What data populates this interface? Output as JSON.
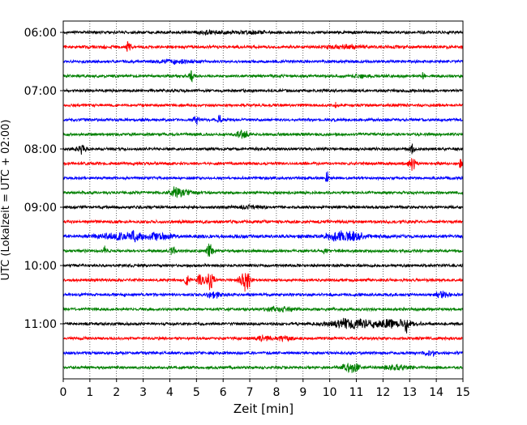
{
  "chart_data": {
    "type": "line",
    "title": "",
    "xlabel": "Zeit  [min]",
    "ylabel": "UTC (Lokalzeit = UTC + 02:00)",
    "xlim": [
      0,
      15
    ],
    "x_ticks": [
      "0",
      "1",
      "2",
      "3",
      "4",
      "5",
      "6",
      "7",
      "8",
      "9",
      "10",
      "11",
      "12",
      "13",
      "14",
      "15"
    ],
    "y_ticks": [
      "06:00",
      "07:00",
      "08:00",
      "09:00",
      "10:00",
      "11:00"
    ],
    "grid": "vertical dotted",
    "trace_interval_minutes": 15,
    "colors": [
      "#000000",
      "#ff0000",
      "#0000ff",
      "#008000"
    ],
    "traces": [
      {
        "start": "06:00",
        "color": "#000000",
        "noise": 2.0,
        "events": [
          [
            5.5,
            2,
            0.5
          ],
          [
            7.0,
            1.6,
            0.6
          ]
        ]
      },
      {
        "start": "06:15",
        "color": "#ff0000",
        "noise": 2.2,
        "events": [
          [
            2.45,
            9,
            0.08
          ],
          [
            10.6,
            2.5,
            0.5
          ]
        ]
      },
      {
        "start": "06:30",
        "color": "#0000ff",
        "noise": 2.0,
        "events": [
          [
            4.2,
            2.5,
            0.6
          ]
        ]
      },
      {
        "start": "06:45",
        "color": "#008000",
        "noise": 2.0,
        "events": [
          [
            4.8,
            8,
            0.08
          ],
          [
            11.2,
            2,
            0.4
          ],
          [
            13.5,
            5,
            0.06
          ]
        ]
      },
      {
        "start": "07:00",
        "color": "#000000",
        "noise": 2.0,
        "events": []
      },
      {
        "start": "07:15",
        "color": "#ff0000",
        "noise": 2.0,
        "events": [
          [
            10.2,
            4,
            0.1
          ]
        ]
      },
      {
        "start": "07:30",
        "color": "#0000ff",
        "noise": 2.0,
        "events": [
          [
            5.0,
            5,
            0.12
          ],
          [
            5.85,
            7,
            0.08
          ]
        ]
      },
      {
        "start": "07:45",
        "color": "#008000",
        "noise": 2.0,
        "events": [
          [
            6.7,
            6,
            0.2
          ]
        ]
      },
      {
        "start": "08:00",
        "color": "#000000",
        "noise": 2.0,
        "events": [
          [
            0.65,
            6,
            0.2
          ],
          [
            13.1,
            7,
            0.1
          ]
        ]
      },
      {
        "start": "08:15",
        "color": "#ff0000",
        "noise": 2.0,
        "events": [
          [
            13.1,
            10,
            0.12
          ],
          [
            14.9,
            6,
            0.06
          ]
        ]
      },
      {
        "start": "08:30",
        "color": "#0000ff",
        "noise": 2.0,
        "events": [
          [
            9.9,
            9,
            0.06
          ]
        ]
      },
      {
        "start": "08:45",
        "color": "#008000",
        "noise": 2.0,
        "events": [
          [
            4.2,
            7,
            0.2
          ],
          [
            4.6,
            3,
            0.3
          ]
        ]
      },
      {
        "start": "09:00",
        "color": "#000000",
        "noise": 2.0,
        "events": [
          [
            7.0,
            2,
            0.5
          ]
        ]
      },
      {
        "start": "09:15",
        "color": "#ff0000",
        "noise": 2.2,
        "events": []
      },
      {
        "start": "09:30",
        "color": "#0000ff",
        "noise": 2.5,
        "events": [
          [
            2.0,
            4,
            0.6
          ],
          [
            2.7,
            7,
            0.2
          ],
          [
            3.5,
            5,
            0.5
          ],
          [
            10.6,
            6,
            0.7
          ]
        ]
      },
      {
        "start": "09:45",
        "color": "#008000",
        "noise": 2.0,
        "events": [
          [
            1.55,
            5,
            0.08
          ],
          [
            4.1,
            6,
            0.1
          ],
          [
            5.5,
            9,
            0.12
          ],
          [
            9.8,
            3,
            0.1
          ]
        ]
      },
      {
        "start": "10:00",
        "color": "#000000",
        "noise": 2.0,
        "events": []
      },
      {
        "start": "10:15",
        "color": "#ff0000",
        "noise": 2.0,
        "events": [
          [
            4.65,
            8,
            0.08
          ],
          [
            5.15,
            10,
            0.1
          ],
          [
            5.5,
            14,
            0.15
          ],
          [
            6.75,
            11,
            0.15
          ],
          [
            6.9,
            13,
            0.12
          ]
        ]
      },
      {
        "start": "10:30",
        "color": "#0000ff",
        "noise": 2.0,
        "events": [
          [
            5.7,
            4,
            0.3
          ],
          [
            14.2,
            4,
            0.3
          ]
        ]
      },
      {
        "start": "10:45",
        "color": "#008000",
        "noise": 2.0,
        "events": [
          [
            8.2,
            3,
            0.5
          ]
        ]
      },
      {
        "start": "11:00",
        "color": "#000000",
        "noise": 2.0,
        "events": [
          [
            10.8,
            6,
            0.9
          ],
          [
            12.4,
            5,
            0.7
          ],
          [
            12.9,
            9,
            0.08
          ]
        ]
      },
      {
        "start": "11:15",
        "color": "#ff0000",
        "noise": 2.0,
        "events": [
          [
            7.5,
            3,
            0.3
          ],
          [
            8.3,
            3,
            0.3
          ]
        ]
      },
      {
        "start": "11:30",
        "color": "#0000ff",
        "noise": 2.0,
        "events": [
          [
            13.8,
            3,
            0.2
          ]
        ]
      },
      {
        "start": "11:45",
        "color": "#008000",
        "noise": 2.0,
        "events": [
          [
            10.8,
            7,
            0.3
          ],
          [
            12.5,
            3,
            0.5
          ]
        ]
      }
    ]
  }
}
